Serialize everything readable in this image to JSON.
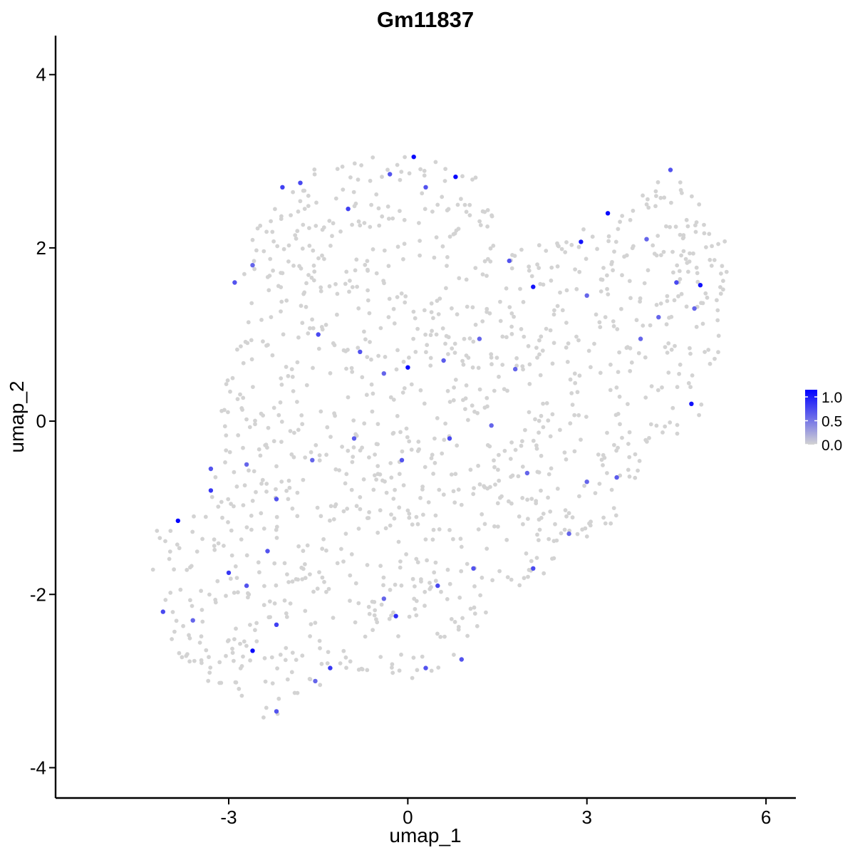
{
  "chart_data": {
    "type": "scatter",
    "title": "Gm11837",
    "xlabel": "umap_1",
    "ylabel": "umap_2",
    "xlim": [
      -5.9,
      6.5
    ],
    "ylim": [
      -4.35,
      4.45
    ],
    "x_ticks": [
      -3,
      0,
      3,
      6
    ],
    "x_tick_labels": [
      "-3",
      "0",
      "3",
      "6"
    ],
    "y_ticks": [
      -4,
      -2,
      0,
      2,
      4
    ],
    "y_tick_labels": [
      "-4",
      "-2",
      "0",
      "2",
      "4"
    ],
    "grid": false,
    "color_scale": {
      "low_color": "#d3d3d3",
      "high_color": "#0000ff",
      "min": 0.0,
      "max": 1.15,
      "breaks": [
        0.0,
        0.5,
        1.0
      ],
      "break_labels": [
        "0.0",
        "0.5",
        "1.0"
      ],
      "legend_position": "right"
    },
    "point_color_default": "#d3d3d3",
    "expressing_points": [
      [
        -3.85,
        -1.15,
        1.15
      ],
      [
        -2.6,
        -2.65,
        1.1
      ],
      [
        0.1,
        3.05,
        1.1
      ],
      [
        0.8,
        2.82,
        1.1
      ],
      [
        0.0,
        0.62,
        1.1
      ],
      [
        2.1,
        1.55,
        1.05
      ],
      [
        2.9,
        2.07,
        1.05
      ],
      [
        3.35,
        2.4,
        1.1
      ],
      [
        4.9,
        1.57,
        1.05
      ],
      [
        4.75,
        0.2,
        1.05
      ],
      [
        -0.2,
        -2.25,
        0.9
      ],
      [
        -2.1,
        2.7,
        0.8
      ],
      [
        -1.8,
        2.75,
        0.75
      ],
      [
        -1.0,
        2.45,
        0.8
      ],
      [
        -0.3,
        2.85,
        0.7
      ],
      [
        0.3,
        2.7,
        0.7
      ],
      [
        -2.9,
        1.6,
        0.7
      ],
      [
        -2.6,
        1.8,
        0.6
      ],
      [
        -1.5,
        1.0,
        0.75
      ],
      [
        -0.8,
        0.8,
        0.7
      ],
      [
        -0.4,
        0.55,
        0.6
      ],
      [
        0.6,
        0.7,
        0.65
      ],
      [
        1.2,
        0.95,
        0.6
      ],
      [
        1.8,
        0.6,
        0.6
      ],
      [
        -3.3,
        -0.55,
        0.7
      ],
      [
        -3.3,
        -0.8,
        0.85
      ],
      [
        -2.7,
        -0.5,
        0.6
      ],
      [
        -2.2,
        -0.9,
        0.7
      ],
      [
        -1.6,
        -0.45,
        0.6
      ],
      [
        -0.9,
        -0.2,
        0.65
      ],
      [
        -0.1,
        -0.45,
        0.7
      ],
      [
        0.7,
        -0.2,
        0.75
      ],
      [
        1.4,
        -0.05,
        0.6
      ],
      [
        2.0,
        -0.6,
        0.6
      ],
      [
        -4.1,
        -2.2,
        0.75
      ],
      [
        -3.6,
        -2.3,
        0.6
      ],
      [
        -3.0,
        -1.75,
        0.85
      ],
      [
        -2.7,
        -1.9,
        0.7
      ],
      [
        -2.2,
        -2.35,
        0.8
      ],
      [
        -1.3,
        -2.85,
        0.85
      ],
      [
        -0.4,
        -2.05,
        0.6
      ],
      [
        0.5,
        -1.9,
        0.75
      ],
      [
        1.1,
        -1.7,
        0.7
      ],
      [
        2.1,
        -1.7,
        0.75
      ],
      [
        2.7,
        -1.3,
        0.6
      ],
      [
        3.0,
        -0.7,
        0.6
      ],
      [
        3.5,
        -0.65,
        0.65
      ],
      [
        3.9,
        0.95,
        0.6
      ],
      [
        4.2,
        1.2,
        0.6
      ],
      [
        4.5,
        1.6,
        0.75
      ],
      [
        4.8,
        1.3,
        0.6
      ],
      [
        4.4,
        2.9,
        0.7
      ],
      [
        4.0,
        2.1,
        0.6
      ],
      [
        3.0,
        1.45,
        0.6
      ],
      [
        1.7,
        1.85,
        0.7
      ],
      [
        -2.35,
        -1.5,
        0.7
      ],
      [
        -1.55,
        -3.0,
        0.6
      ],
      [
        -2.2,
        -3.35,
        0.7
      ],
      [
        0.3,
        -2.85,
        0.7
      ],
      [
        0.9,
        -2.75,
        0.7
      ]
    ]
  }
}
